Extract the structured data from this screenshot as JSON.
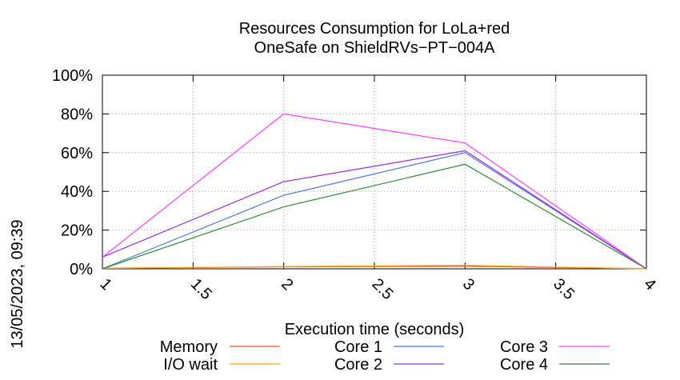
{
  "timestamp": "13/05/2023, 09:39",
  "chart_data": {
    "type": "line",
    "title": [
      "Resources Consumption for LoLa+red",
      "OneSafe on ShieldRVs−PT−004A"
    ],
    "xlabel": "Execution time (seconds)",
    "ylabel": "",
    "xlim": [
      1,
      4
    ],
    "ylim": [
      0,
      100
    ],
    "x_ticks": [
      1,
      1.5,
      2,
      2.5,
      3,
      3.5,
      4
    ],
    "x_tick_labels": [
      "1",
      "1.5",
      "2",
      "2.5",
      "3",
      "3.5",
      "4"
    ],
    "y_ticks": [
      0,
      20,
      40,
      60,
      80,
      100
    ],
    "y_tick_labels": [
      "0%",
      "20%",
      "40%",
      "60%",
      "80%",
      "100%"
    ],
    "grid": true,
    "legend_position": "bottom",
    "x": [
      1,
      2,
      3,
      4
    ],
    "series": [
      {
        "name": "Memory",
        "color": "#ff4a2a",
        "values": [
          0.3,
          1.0,
          1.3,
          0.1
        ]
      },
      {
        "name": "I/O wait",
        "color": "#ffa500",
        "values": [
          0.2,
          1.2,
          1.8,
          0.0
        ]
      },
      {
        "name": "Core 1",
        "color": "#4a78d8",
        "values": [
          0,
          38,
          60,
          0
        ]
      },
      {
        "name": "Core 2",
        "color": "#9a2ae0",
        "values": [
          6,
          45,
          61,
          0
        ]
      },
      {
        "name": "Core 3",
        "color": "#ff3cff",
        "values": [
          6,
          80,
          65,
          0
        ]
      },
      {
        "name": "Core 4",
        "color": "#2e8b2e",
        "values": [
          0,
          32,
          54,
          0
        ]
      }
    ]
  }
}
